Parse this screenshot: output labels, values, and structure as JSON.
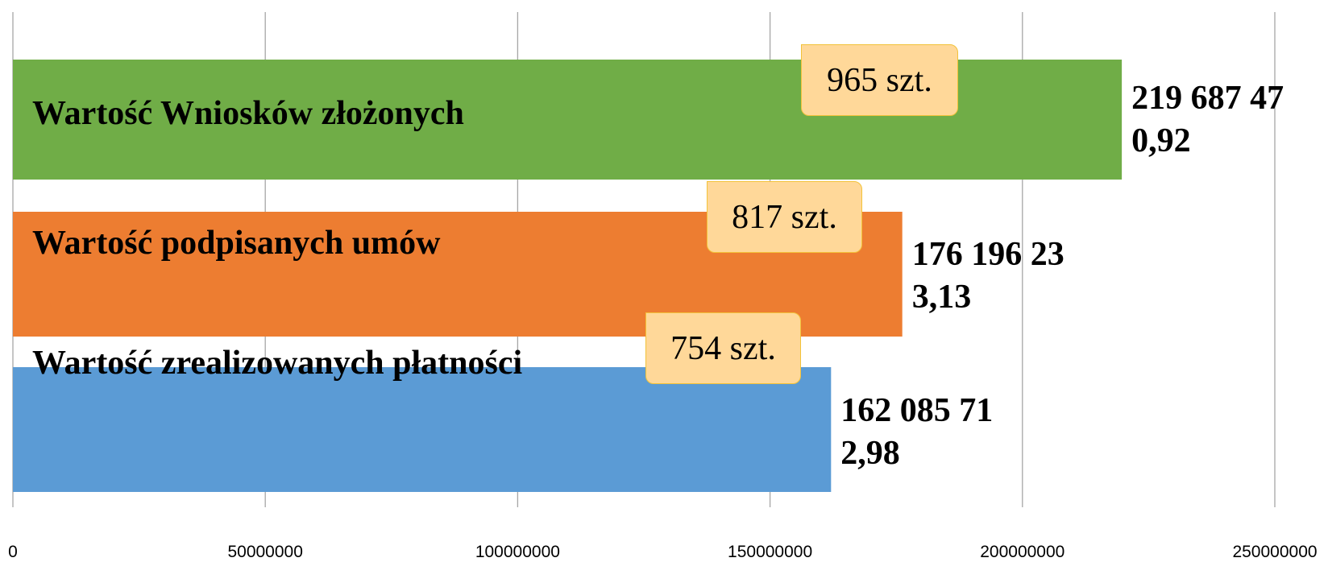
{
  "chart_data": {
    "type": "barh",
    "categories": [
      "Wartość Wniosków złożonych",
      "Wartość podpisanych umów",
      "Wartość zrealizowanych płatności"
    ],
    "values": [
      219687470.92,
      176196233.13,
      162085712.98
    ],
    "value_labels": [
      "219 687 470,92",
      "176 196 233,13",
      "162 085 712,98"
    ],
    "annotations": [
      "965 szt.",
      "817 szt.",
      "754 szt."
    ],
    "colors": [
      "#70ad47",
      "#ed7d31",
      "#5b9bd5"
    ],
    "xlim": [
      0,
      250000000
    ],
    "xticks": [
      0,
      50000000,
      100000000,
      150000000,
      200000000,
      250000000
    ],
    "grid": true
  }
}
